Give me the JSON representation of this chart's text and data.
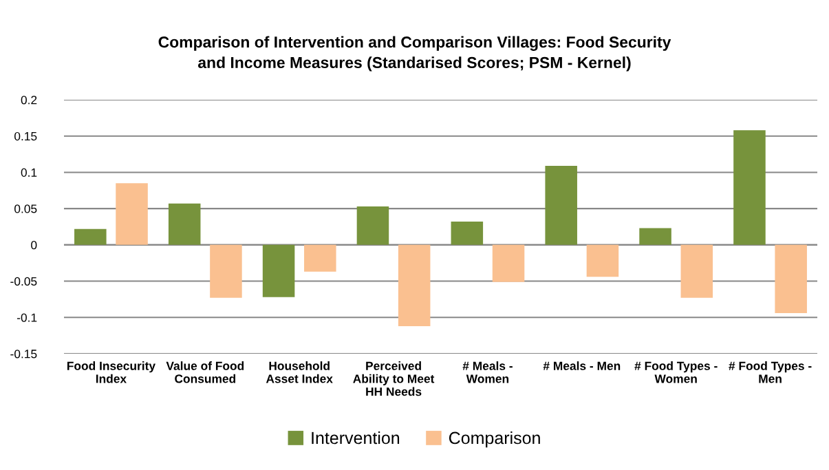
{
  "chart_data": {
    "type": "bar",
    "title": "Comparison of Intervention and Comparison Villages: Food Security\nand Income Measures (Standarised Scores; PSM - Kernel)",
    "categories": [
      "Food Insecurity\nIndex",
      "Value of Food\nConsumed",
      "Household\nAsset Index",
      "Perceived\nAbility to Meet\nHH Needs",
      "# Meals -\nWomen",
      "# Meals - Men",
      "# Food Types -\nWomen",
      "# Food Types -\nMen"
    ],
    "series": [
      {
        "name": "Intervention",
        "color": "#77933c",
        "values": [
          0.022,
          0.057,
          -0.072,
          0.053,
          0.032,
          0.109,
          0.023,
          0.158
        ]
      },
      {
        "name": "Comparison",
        "color": "#fac090",
        "values": [
          0.085,
          -0.073,
          -0.037,
          -0.112,
          -0.051,
          -0.044,
          -0.073,
          -0.094
        ]
      }
    ],
    "ylim": [
      -0.15,
      0.2
    ],
    "yticks": [
      -0.15,
      -0.1,
      -0.05,
      0,
      0.05,
      0.1,
      0.15,
      0.2
    ],
    "grid": "y",
    "legend": "bottom"
  }
}
